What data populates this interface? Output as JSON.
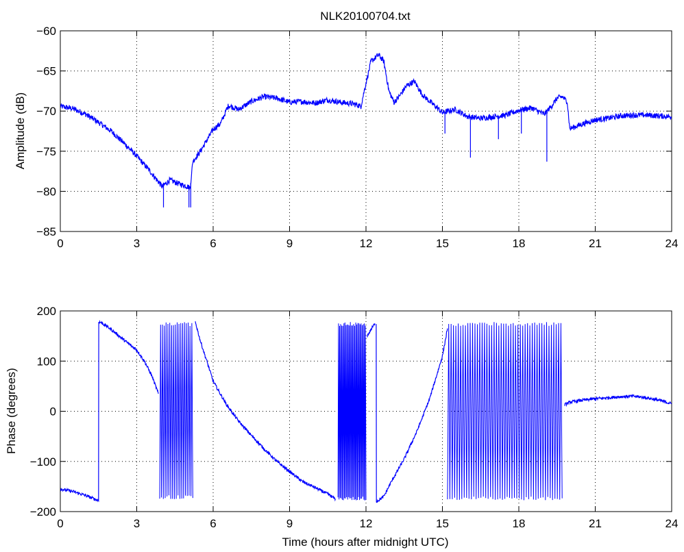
{
  "title": "NLK20100704.txt",
  "colors": {
    "line": "#0000ff",
    "axis": "#000000",
    "grid": "#000000",
    "background": "#ffffff"
  },
  "chart_data": [
    {
      "type": "line",
      "title": "NLK20100704.txt",
      "xlabel": "",
      "ylabel": "Amplitude (dB)",
      "xlim": [
        0,
        24
      ],
      "ylim": [
        -85,
        -60
      ],
      "xticks": [
        0,
        3,
        6,
        9,
        12,
        15,
        18,
        21,
        24
      ],
      "xtick_labels": [
        "0",
        "3",
        "6",
        "9",
        "12",
        "15",
        "18",
        "21",
        "24"
      ],
      "yticks": [
        -85,
        -80,
        -75,
        -70,
        -65,
        -60
      ],
      "ytick_labels": [
        "−85",
        "−80",
        "−75",
        "−70",
        "−65",
        "−60"
      ],
      "grid": true,
      "grid_style": "dotted",
      "noise": 0.35,
      "series": [
        {
          "x": [
            0,
            0.5,
            1,
            1.5,
            2,
            2.5,
            3,
            3.5,
            3.8,
            4.0,
            4.3,
            4.6,
            5.0,
            5.1,
            5.2,
            5.5,
            6.0,
            6.3,
            6.6,
            7.0,
            7.5,
            8.0,
            8.5,
            9.0,
            9.5,
            10.0,
            10.5,
            11.0,
            11.5,
            11.8,
            12.0,
            12.2,
            12.5,
            12.7,
            12.9,
            13.1,
            13.3,
            13.6,
            13.9,
            14.2,
            14.5,
            14.8,
            15.0,
            15.5,
            16.0,
            16.5,
            17.0,
            17.5,
            18.0,
            18.5,
            19.0,
            19.3,
            19.5,
            19.7,
            19.9,
            20.0,
            20.5,
            21.0,
            21.5,
            22.0,
            22.5,
            23.0,
            23.5,
            24.0
          ],
          "y": [
            -69.4,
            -69.7,
            -70.4,
            -71.4,
            -72.5,
            -74.0,
            -75.6,
            -77.4,
            -78.6,
            -79.4,
            -78.6,
            -79.0,
            -79.4,
            -79.6,
            -76.3,
            -75.0,
            -72.3,
            -71.5,
            -69.3,
            -69.8,
            -68.8,
            -68.2,
            -68.4,
            -68.9,
            -68.8,
            -69.0,
            -68.6,
            -68.9,
            -69.1,
            -69.4,
            -66.5,
            -63.8,
            -63.0,
            -63.8,
            -67.5,
            -68.9,
            -68.2,
            -66.8,
            -66.3,
            -67.9,
            -68.8,
            -69.6,
            -70.2,
            -69.8,
            -70.7,
            -70.9,
            -70.7,
            -70.5,
            -69.9,
            -69.6,
            -70.4,
            -69.3,
            -68.4,
            -68.2,
            -68.8,
            -72.2,
            -71.6,
            -71.1,
            -70.9,
            -70.6,
            -70.5,
            -70.5,
            -70.6,
            -70.7
          ],
          "spikes": [
            {
              "x": 4.05,
              "y": -82.0
            },
            {
              "x": 5.05,
              "y": -82.0
            },
            {
              "x": 5.12,
              "y": -82.0
            },
            {
              "x": 15.1,
              "y": -72.8
            },
            {
              "x": 16.1,
              "y": -75.8
            },
            {
              "x": 17.2,
              "y": -73.5
            },
            {
              "x": 18.1,
              "y": -72.8
            },
            {
              "x": 19.1,
              "y": -76.3
            }
          ]
        }
      ]
    },
    {
      "type": "line",
      "title": "",
      "xlabel": "Time (hours after midnight UTC)",
      "ylabel": "Phase (degrees)",
      "xlim": [
        0,
        24
      ],
      "ylim": [
        -200,
        200
      ],
      "xticks": [
        0,
        3,
        6,
        9,
        12,
        15,
        18,
        21,
        24
      ],
      "xtick_labels": [
        "0",
        "3",
        "6",
        "9",
        "12",
        "15",
        "18",
        "21",
        "24"
      ],
      "yticks": [
        -200,
        -100,
        0,
        100,
        200
      ],
      "ytick_labels": [
        "−200",
        "−100",
        "0",
        "100",
        "200"
      ],
      "grid": true,
      "grid_style": "dotted",
      "noise": 3,
      "series": [
        {
          "x": [
            0,
            0.5,
            1.0,
            1.5,
            1.51,
            1.6,
            2.0,
            2.5,
            3.0,
            3.3,
            3.6,
            3.85
          ],
          "y": [
            -155,
            -160,
            -168,
            -178,
            178,
            177,
            163,
            142,
            122,
            100,
            70,
            35
          ]
        },
        {
          "x": [
            5.3,
            5.5,
            6.0,
            6.5,
            7.0,
            7.5,
            8.0,
            8.5,
            9.0,
            9.5,
            10.0,
            10.5,
            10.8
          ],
          "y": [
            178,
            140,
            60,
            15,
            -20,
            -48,
            -75,
            -100,
            -120,
            -140,
            -152,
            -165,
            -175
          ]
        },
        {
          "x": [
            12.05,
            12.2,
            12.35
          ],
          "y": [
            150,
            163,
            175
          ]
        },
        {
          "x": [
            12.4,
            12.41,
            12.7,
            13.0,
            13.5,
            14.0,
            14.5,
            15.0,
            15.2
          ],
          "y": [
            175,
            -180,
            -170,
            -140,
            -95,
            -40,
            25,
            110,
            165
          ]
        },
        {
          "x": [
            19.8,
            20.0,
            20.5,
            21.0,
            21.5,
            22.0,
            22.5,
            23.0,
            23.5,
            24.0
          ],
          "y": [
            13,
            18,
            22,
            25,
            27,
            29,
            30,
            27,
            22,
            15
          ]
        }
      ],
      "oscillation_bands": [
        {
          "x_start": 3.9,
          "x_end": 5.2,
          "y_low": -175,
          "y_high": 178,
          "cycles": 18
        },
        {
          "x_start": 10.9,
          "x_end": 12.0,
          "y_low": -178,
          "y_high": 178,
          "cycles": 26
        },
        {
          "x_start": 15.2,
          "x_end": 19.7,
          "y_low": -178,
          "y_high": 178,
          "cycles": 48
        }
      ]
    }
  ]
}
